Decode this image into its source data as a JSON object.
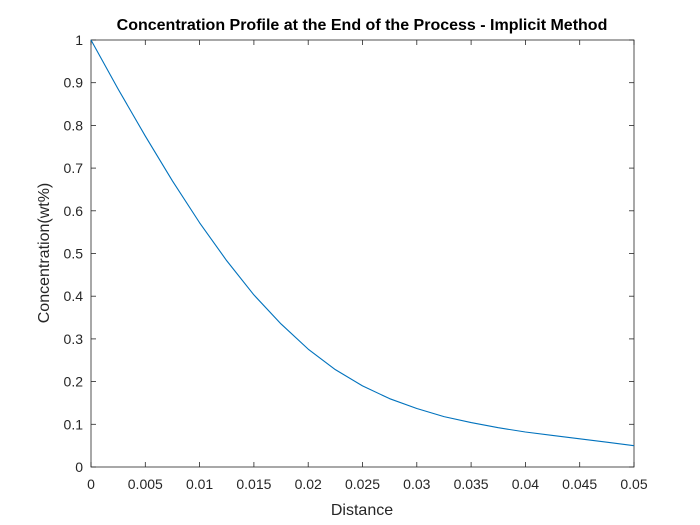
{
  "chart_data": {
    "type": "line",
    "title": "Concentration Profile at the End of the Process - Implicit Method",
    "xlabel": "Distance",
    "ylabel": "Concentration(wt%)",
    "xlim": [
      0,
      0.05
    ],
    "ylim": [
      0,
      1
    ],
    "xticks": [
      "0",
      "0.005",
      "0.01",
      "0.015",
      "0.02",
      "0.025",
      "0.03",
      "0.035",
      "0.04",
      "0.045",
      "0.05"
    ],
    "yticks": [
      "0",
      "0.1",
      "0.2",
      "0.3",
      "0.4",
      "0.5",
      "0.6",
      "0.7",
      "0.8",
      "0.9",
      "1"
    ],
    "grid": false,
    "series": [
      {
        "color": "#0072BD",
        "x": [
          0,
          0.0025,
          0.005,
          0.0075,
          0.01,
          0.0125,
          0.015,
          0.0175,
          0.02,
          0.0225,
          0.025,
          0.0275,
          0.03,
          0.0325,
          0.035,
          0.0375,
          0.04,
          0.0425,
          0.045,
          0.0475,
          0.05
        ],
        "y": [
          1.0,
          0.885,
          0.775,
          0.67,
          0.572,
          0.483,
          0.403,
          0.335,
          0.276,
          0.228,
          0.19,
          0.16,
          0.137,
          0.118,
          0.104,
          0.092,
          0.082,
          0.074,
          0.066,
          0.058,
          0.05
        ]
      }
    ]
  }
}
